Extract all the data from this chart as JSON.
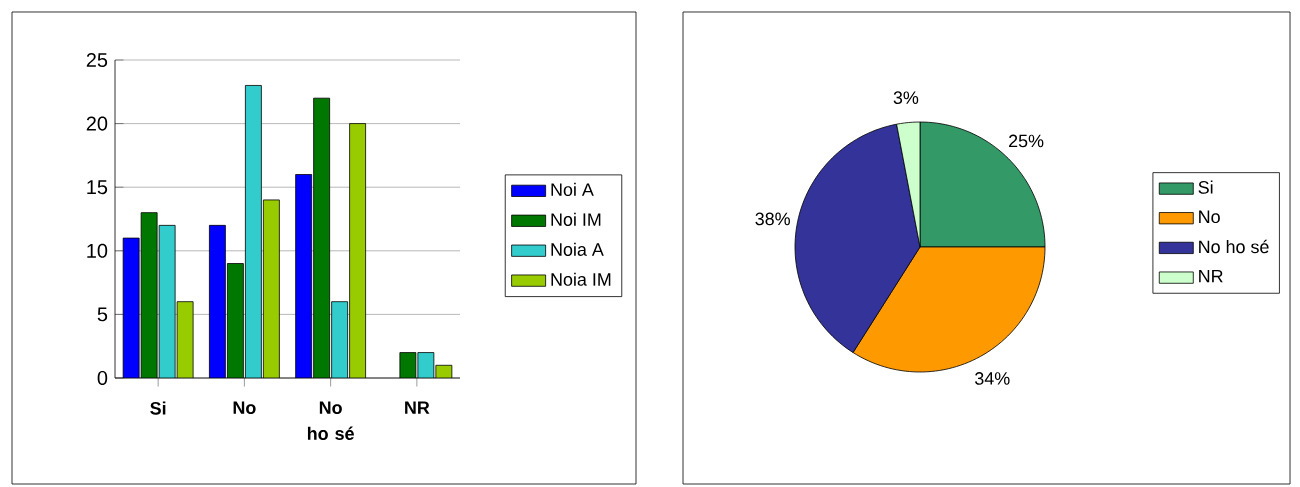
{
  "chart_data": [
    {
      "type": "bar",
      "categories": [
        "Si",
        "No",
        "No ho sé",
        "NR"
      ],
      "series": [
        {
          "name": "Noi A",
          "color": "#0000ff",
          "values": [
            11,
            12,
            16,
            null
          ]
        },
        {
          "name": "Noi IM",
          "color": "#007800",
          "values": [
            13,
            9,
            22,
            2
          ]
        },
        {
          "name": "Noia A",
          "color": "#33cccc",
          "values": [
            12,
            23,
            6,
            2
          ]
        },
        {
          "name": "Noia IM",
          "color": "#99cc00",
          "values": [
            6,
            14,
            20,
            1
          ]
        }
      ],
      "ylim": [
        0,
        25
      ],
      "yticks": [
        0,
        5,
        10,
        15,
        20,
        25
      ],
      "grid": "y",
      "legend": "right"
    },
    {
      "type": "pie",
      "categories": [
        "Si",
        "No",
        "No ho sé",
        "NR"
      ],
      "values": [
        25,
        34,
        38,
        3
      ],
      "colors": [
        "#339966",
        "#ff9900",
        "#333399",
        "#ccffcc"
      ],
      "value_labels": [
        "25%",
        "34%",
        "38%",
        "3%"
      ],
      "legend": "right"
    }
  ]
}
